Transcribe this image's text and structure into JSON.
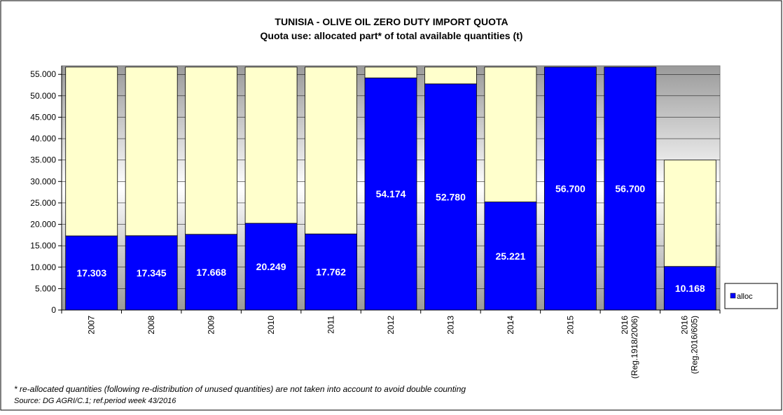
{
  "chart_data": {
    "type": "bar",
    "stacked": true,
    "title": "TUNISIA  - OLIVE OIL ZERO DUTY IMPORT QUOTA",
    "subtitle": "Quota use: allocated part* of total available quantities (t)",
    "categories": [
      "2007",
      "2008",
      "2009",
      "2010",
      "2011",
      "2012",
      "2013",
      "2014",
      "2015",
      "2016 (Reg.1918/2006)",
      "2016 (Reg.2016/605)"
    ],
    "series": [
      {
        "name": "alloc",
        "color": "#0000ff",
        "values": [
          17303,
          17345,
          17668,
          20249,
          17762,
          54174,
          52780,
          25221,
          56700,
          56700,
          10168
        ],
        "value_labels": [
          "17.303",
          "17.345",
          "17.668",
          "20.249",
          "17.762",
          "54.174",
          "52.780",
          "25.221",
          "56.700",
          "56.700",
          "10.168"
        ]
      },
      {
        "color": "#ffffcc",
        "values": [
          39397,
          39355,
          39032,
          36451,
          38938,
          2526,
          3920,
          31479,
          0,
          0,
          24832
        ]
      }
    ],
    "ylim": [
      0,
      57000
    ],
    "yticks": [
      0,
      {
        "value": 5000,
        "label": "5.000"
      },
      {
        "value": 10000,
        "label": "10.000"
      },
      {
        "value": 15000,
        "label": "15.000"
      },
      {
        "value": 20000,
        "label": "20.000"
      },
      {
        "value": 25000,
        "label": "25.000"
      },
      {
        "value": 30000,
        "label": "30.000"
      },
      {
        "value": 35000,
        "label": "35.000"
      },
      {
        "value": 40000,
        "label": "40.000"
      },
      {
        "value": 45000,
        "label": "45.000"
      },
      {
        "value": 50000,
        "label": "50.000"
      },
      {
        "value": 55000,
        "label": "55.000"
      }
    ],
    "grid": true,
    "legend": "right",
    "notes": [
      "* re-allocated quantities (following re-distribution of unused quantities) are not taken into account to avoid double counting",
      "Source: DG AGRI/C.1;  ref.period week 43/2016"
    ]
  }
}
